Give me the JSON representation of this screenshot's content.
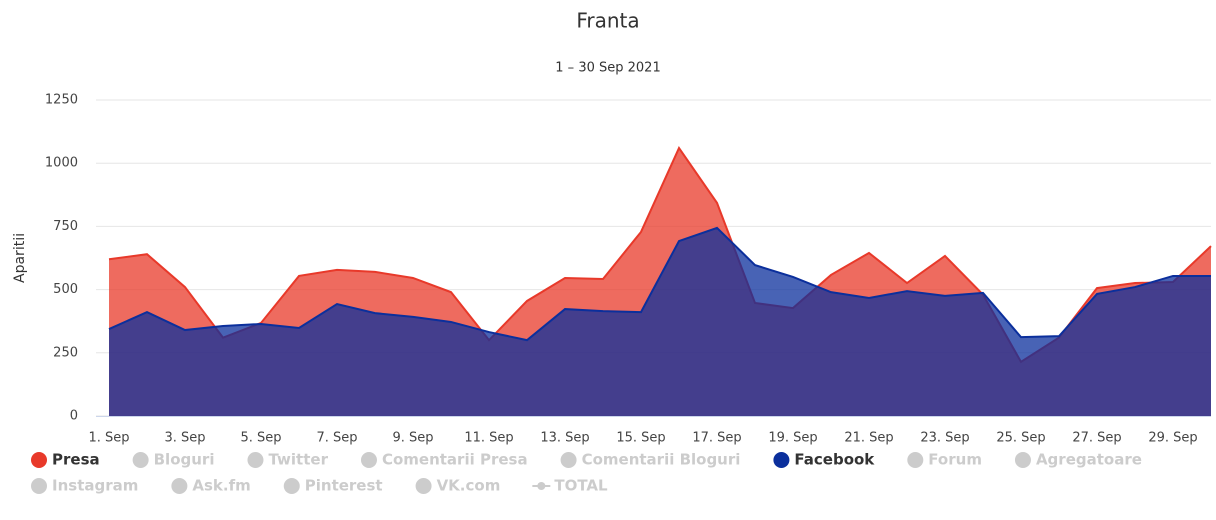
{
  "chart_data": {
    "type": "area",
    "title": "Franta",
    "subtitle": "1 – 30 Sep 2021",
    "y_label": "Aparitii",
    "categories": [
      "1. Sep",
      null,
      "3. Sep",
      null,
      "5. Sep",
      null,
      "7. Sep",
      null,
      "9. Sep",
      null,
      "11. Sep",
      null,
      "13. Sep",
      null,
      "15. Sep",
      null,
      "17. Sep",
      null,
      "19. Sep",
      null,
      "21. Sep",
      null,
      "23. Sep",
      null,
      "25. Sep",
      null,
      "27. Sep",
      null,
      "29. Sep",
      null
    ],
    "ylim": [
      0,
      1250
    ],
    "yticks": [
      0,
      250,
      500,
      750,
      1000,
      1250
    ],
    "grid": true,
    "series": [
      {
        "name": "Presa",
        "color": "#e8392a",
        "visible": true,
        "values": [
          620,
          640,
          510,
          310,
          368,
          554,
          578,
          570,
          546,
          490,
          300,
          455,
          546,
          542,
          728,
          1060,
          843,
          447,
          427,
          558,
          645,
          526,
          633,
          480,
          214,
          310,
          506,
          526,
          530,
          672
        ]
      },
      {
        "name": "Bloguri",
        "color": "#cccccc",
        "visible": false
      },
      {
        "name": "Twitter",
        "color": "#cccccc",
        "visible": false
      },
      {
        "name": "Comentarii Presa",
        "color": "#cccccc",
        "visible": false
      },
      {
        "name": "Comentarii Bloguri",
        "color": "#cccccc",
        "visible": false
      },
      {
        "name": "Facebook",
        "color": "#0b2f9c",
        "visible": true,
        "values": [
          344,
          411,
          340,
          356,
          364,
          348,
          443,
          407,
          392,
          372,
          332,
          300,
          423,
          415,
          411,
          692,
          744,
          597,
          550,
          490,
          467,
          494,
          475,
          487,
          312,
          316,
          483,
          510,
          554,
          554
        ]
      },
      {
        "name": "Forum",
        "color": "#cccccc",
        "visible": false
      },
      {
        "name": "Agregatoare",
        "color": "#cccccc",
        "visible": false
      },
      {
        "name": "Instagram",
        "color": "#cccccc",
        "visible": false
      },
      {
        "name": "Ask.fm",
        "color": "#cccccc",
        "visible": false
      },
      {
        "name": "Pinterest",
        "color": "#cccccc",
        "visible": false
      },
      {
        "name": "VK.com",
        "color": "#cccccc",
        "visible": false
      },
      {
        "name": "TOTAL",
        "color": "#cccccc",
        "visible": false,
        "marker": "line"
      }
    ]
  }
}
